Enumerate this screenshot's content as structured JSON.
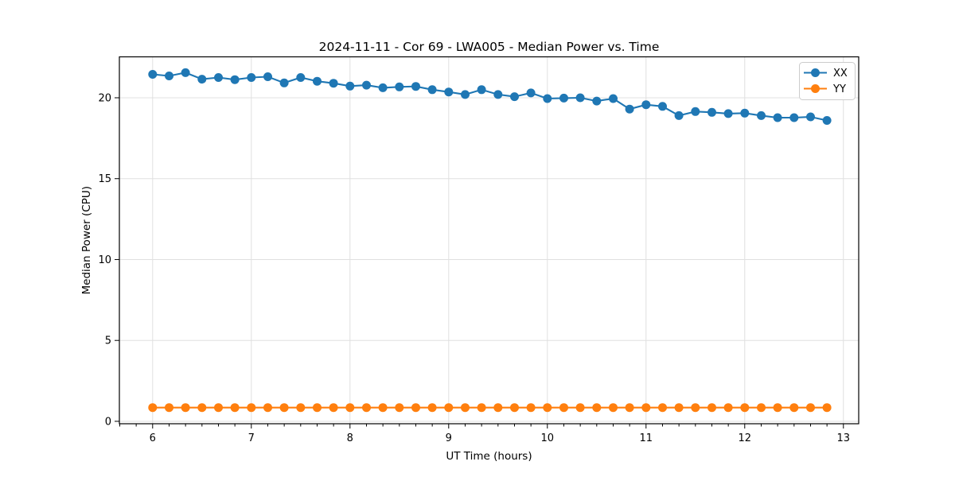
{
  "chart_data": {
    "type": "line",
    "title": "2024-11-11 - Cor 69 - LWA005 - Median Power vs. Time",
    "xlabel": "UT Time (hours)",
    "ylabel": "Median Power (CPU)",
    "xlim": [
      5.663,
      13.155
    ],
    "ylim": [
      -0.15,
      22.53
    ],
    "xticks": [
      6,
      7,
      8,
      9,
      10,
      11,
      12,
      13
    ],
    "yticks": [
      0,
      5,
      10,
      15,
      20
    ],
    "x_minor_step": 0.16667,
    "grid": true,
    "legend_position": "upper right",
    "x": [
      6.0,
      6.167,
      6.333,
      6.5,
      6.667,
      6.833,
      7.0,
      7.167,
      7.333,
      7.5,
      7.667,
      7.833,
      8.0,
      8.167,
      8.333,
      8.5,
      8.667,
      8.833,
      9.0,
      9.167,
      9.333,
      9.5,
      9.667,
      9.833,
      10.0,
      10.167,
      10.333,
      10.5,
      10.667,
      10.833,
      11.0,
      11.167,
      11.333,
      11.5,
      11.667,
      11.833,
      12.0,
      12.167,
      12.333,
      12.5,
      12.667,
      12.833
    ],
    "series": [
      {
        "name": "XX",
        "color": "#1f77b4",
        "values": [
          21.45,
          21.35,
          21.55,
          21.15,
          21.25,
          21.12,
          21.25,
          21.3,
          20.92,
          21.25,
          21.02,
          20.9,
          20.72,
          20.78,
          20.62,
          20.67,
          20.7,
          20.5,
          20.36,
          20.2,
          20.5,
          20.2,
          20.07,
          20.3,
          19.95,
          19.98,
          20.0,
          19.8,
          19.95,
          19.3,
          19.57,
          19.47,
          18.9,
          19.15,
          19.1,
          19.02,
          19.05,
          18.9,
          18.77,
          18.77,
          18.82,
          18.6
        ]
      },
      {
        "name": "YY",
        "color": "#ff7f0e",
        "values": [
          0.85,
          0.85,
          0.85,
          0.85,
          0.85,
          0.85,
          0.85,
          0.85,
          0.85,
          0.85,
          0.85,
          0.85,
          0.85,
          0.85,
          0.85,
          0.85,
          0.85,
          0.85,
          0.85,
          0.85,
          0.85,
          0.85,
          0.85,
          0.85,
          0.85,
          0.85,
          0.85,
          0.85,
          0.85,
          0.85,
          0.85,
          0.85,
          0.85,
          0.85,
          0.85,
          0.85,
          0.85,
          0.85,
          0.85,
          0.85,
          0.85,
          0.85
        ]
      }
    ],
    "style": {
      "background": "#ffffff",
      "grid_color": "#e0e0e0",
      "spine_color": "#000000",
      "legend_border": "#cccccc",
      "text_color": "#000000"
    }
  }
}
